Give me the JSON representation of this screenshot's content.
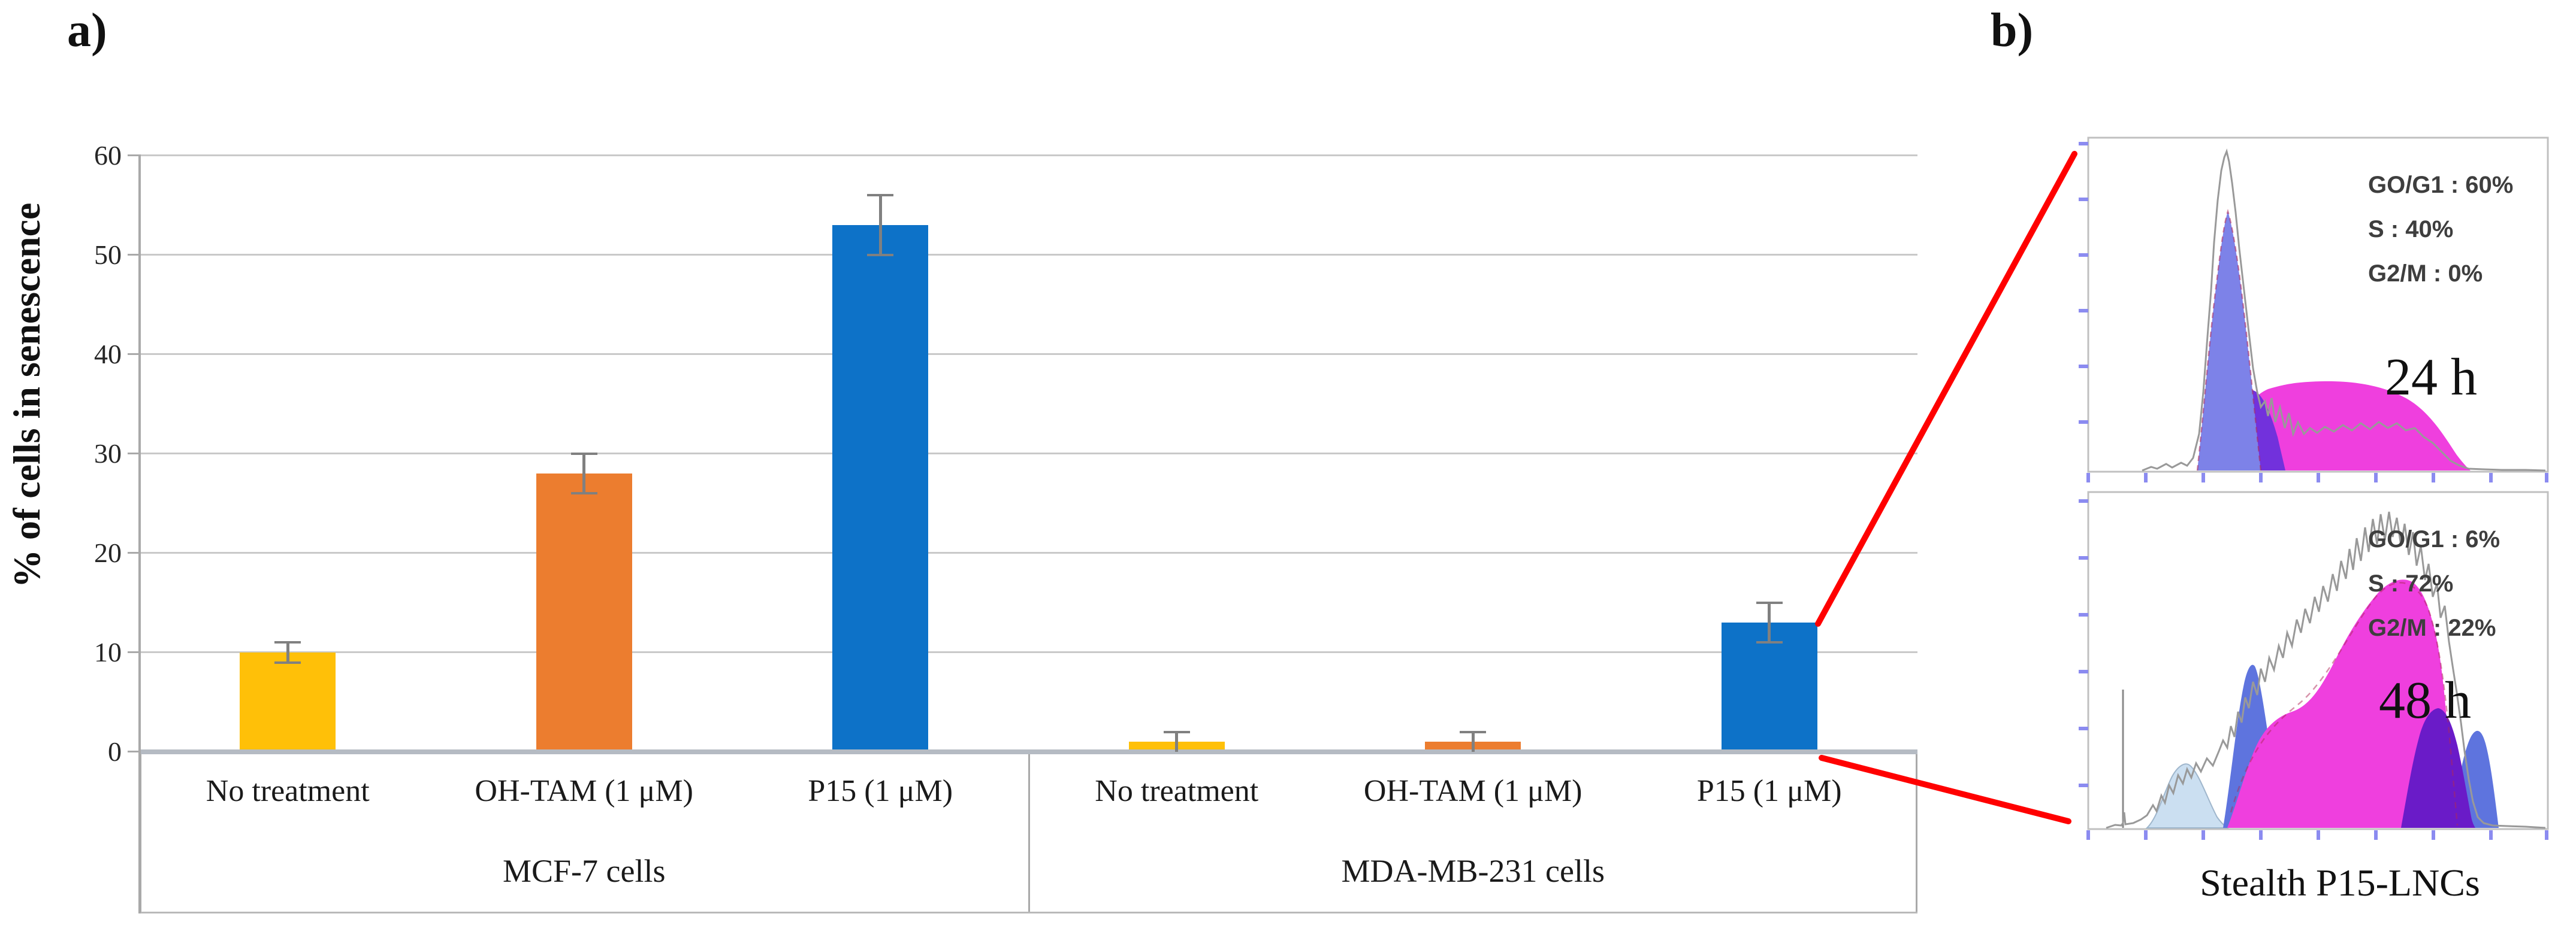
{
  "figure": {
    "panel_a_label": "a)",
    "panel_b_label": "b)"
  },
  "chart_data": {
    "type": "bar",
    "title": "",
    "ylabel": "% of cells in senescence",
    "xlabel": "",
    "ylim": [
      0,
      60
    ],
    "yticks": [
      0,
      10,
      20,
      30,
      40,
      50,
      60
    ],
    "grid": "horizontal gridlines every 10",
    "legend": "none",
    "groups": [
      {
        "label": "MCF-7 cells",
        "categories": [
          "No treatment",
          "OH-TAM (1 μM)",
          "P15 (1 μM)"
        ],
        "values": [
          10,
          28,
          53
        ],
        "errors": [
          1,
          2,
          3
        ]
      },
      {
        "label": "MDA-MB-231 cells",
        "categories": [
          "No treatment",
          "OH-TAM (1 μM)",
          "P15 (1 μM)"
        ],
        "values": [
          1,
          1,
          13
        ],
        "errors": [
          1,
          1,
          2
        ]
      }
    ],
    "bar_colors": [
      "#FFC008",
      "#EC7D2F",
      "#0D72C8"
    ]
  },
  "flow_panels": [
    {
      "time_label": "24 h",
      "stats": [
        "GO/G1 : 60%",
        "S : 40%",
        "G2/M : 0%"
      ]
    },
    {
      "time_label": "48 h",
      "stats": [
        "GO/G1 : 6%",
        "S : 72%",
        "G2/M : 22%"
      ]
    }
  ],
  "caption_b": "Stealth P15-LNCs",
  "colors": {
    "bar_yellow": "#FFC008",
    "bar_orange": "#EC7D2F",
    "bar_blue": "#0D72C8",
    "error_gray": "#808080",
    "gridline_gray": "#C9C9C9",
    "baseline_gray": "#B5BBC3",
    "red_connector": "#FF0000",
    "hist_tick_blue": "#8B8BF0",
    "hist_g1_blue": "#7D82E8",
    "hist_s_magenta": "#EF3FDE",
    "hist_overlap_purple": "#7231DC",
    "hist_lightblue": "#CBDFF1",
    "hist_g2_purple": "#6A1BC8",
    "envelope_gray": "#999999"
  }
}
